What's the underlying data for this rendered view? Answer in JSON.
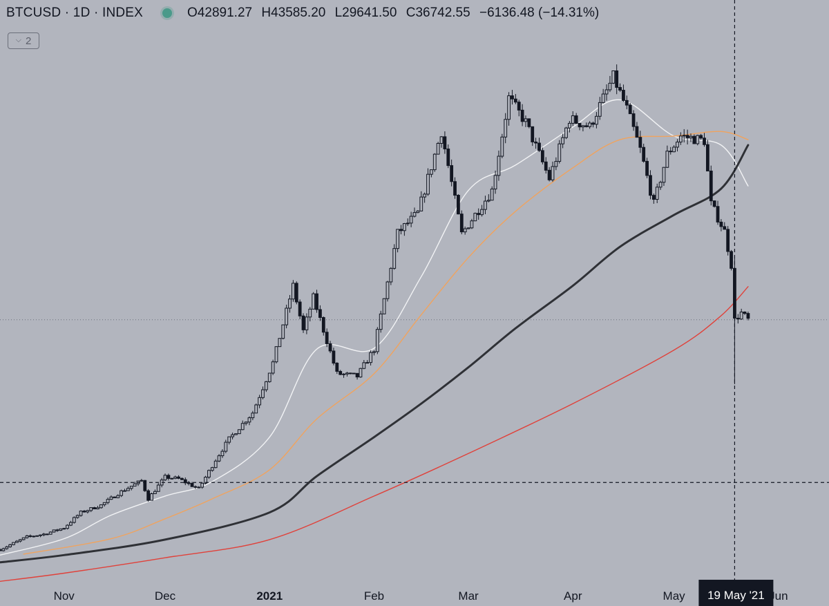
{
  "header": {
    "symbol_title": "BTCUSD · 1D · INDEX",
    "ohlc": {
      "open": "O42891.27",
      "high": "H43585.20",
      "low": "L29641.50",
      "close": "C36742.55",
      "change": "−6136.48 (−14.31%)"
    },
    "indicator_toggle": {
      "icon": "chevron-down-icon",
      "count": "2"
    }
  },
  "crosshair": {
    "date_label": "19 May '21"
  },
  "colors": {
    "background": "#b2b5be",
    "candle": "#131722",
    "ma20": "#f2f3f5",
    "ma50": "#f0a35e",
    "ma200": "#2f3136",
    "ma_red": "#e0413a",
    "crosshair": "#131722",
    "last_price_line": "#6b6f7a"
  },
  "chart_data": {
    "type": "candlestick",
    "symbol": "BTCUSD",
    "interval": "1D",
    "x_range": [
      "2020-10-13",
      "2021-06-16"
    ],
    "xlabel": "",
    "ylabel": "",
    "x_ticks": [
      {
        "date": "2020-11-01",
        "label": "Nov",
        "bold": false
      },
      {
        "date": "2020-12-01",
        "label": "Dec",
        "bold": false
      },
      {
        "date": "2021-01-01",
        "label": "2021",
        "bold": true
      },
      {
        "date": "2021-02-01",
        "label": "Feb",
        "bold": false
      },
      {
        "date": "2021-03-01",
        "label": "Mar",
        "bold": false
      },
      {
        "date": "2021-04-01",
        "label": "Apr",
        "bold": false
      },
      {
        "date": "2021-05-01",
        "label": "May",
        "bold": false
      },
      {
        "date": "2021-06-01",
        "label": "Jun",
        "bold": false
      }
    ],
    "y_range": [
      8000,
      72000
    ],
    "last_close": 36742.55,
    "crosshair_date": "2021-05-19",
    "crosshair_price": 18800,
    "price_path": [
      [
        "2020-10-13",
        11400
      ],
      [
        "2020-10-21",
        12800
      ],
      [
        "2020-10-26",
        13100
      ],
      [
        "2020-11-01",
        13800
      ],
      [
        "2020-11-06",
        15500
      ],
      [
        "2020-11-12",
        16300
      ],
      [
        "2020-11-18",
        17800
      ],
      [
        "2020-11-24",
        19000
      ],
      [
        "2020-11-26",
        17000
      ],
      [
        "2020-12-01",
        19400
      ],
      [
        "2020-12-05",
        19200
      ],
      [
        "2020-12-11",
        18100
      ],
      [
        "2020-12-16",
        21300
      ],
      [
        "2020-12-20",
        23600
      ],
      [
        "2020-12-27",
        26500
      ],
      [
        "2021-01-02",
        32000
      ],
      [
        "2021-01-08",
        40500
      ],
      [
        "2021-01-11",
        35500
      ],
      [
        "2021-01-14",
        39200
      ],
      [
        "2021-01-21",
        30800
      ],
      [
        "2021-01-27",
        30500
      ],
      [
        "2021-02-01",
        33500
      ],
      [
        "2021-02-08",
        46300
      ],
      [
        "2021-02-14",
        48500
      ],
      [
        "2021-02-21",
        57500
      ],
      [
        "2021-02-27",
        46200
      ],
      [
        "2021-03-08",
        51000
      ],
      [
        "2021-03-13",
        61200
      ],
      [
        "2021-03-18",
        58500
      ],
      [
        "2021-03-25",
        52300
      ],
      [
        "2021-03-31",
        58900
      ],
      [
        "2021-04-06",
        58000
      ],
      [
        "2021-04-13",
        63500
      ],
      [
        "2021-04-17",
        60000
      ],
      [
        "2021-04-21",
        55500
      ],
      [
        "2021-04-25",
        49500
      ],
      [
        "2021-04-29",
        55000
      ],
      [
        "2021-05-03",
        57000
      ],
      [
        "2021-05-10",
        56500
      ],
      [
        "2021-05-12",
        49500
      ],
      [
        "2021-05-16",
        46500
      ],
      [
        "2021-05-18",
        42800
      ],
      [
        "2021-05-19",
        36700
      ],
      [
        "2021-05-21",
        37500
      ],
      [
        "2021-05-23",
        36742.55
      ]
    ],
    "series": [
      {
        "color": "#f2f3f5",
        "values": [
          [
            "2020-10-13",
            10800
          ],
          [
            "2020-11-01",
            12600
          ],
          [
            "2020-11-15",
            15200
          ],
          [
            "2020-12-01",
            17300
          ],
          [
            "2020-12-15",
            18900
          ],
          [
            "2021-01-01",
            23800
          ],
          [
            "2021-01-15",
            33500
          ],
          [
            "2021-02-01",
            33600
          ],
          [
            "2021-02-15",
            41500
          ],
          [
            "2021-03-01",
            51000
          ],
          [
            "2021-03-15",
            53800
          ],
          [
            "2021-04-01",
            58000
          ],
          [
            "2021-04-15",
            61000
          ],
          [
            "2021-05-01",
            57000
          ],
          [
            "2021-05-15",
            56000
          ],
          [
            "2021-05-23",
            51500
          ]
        ]
      },
      {
        "color": "#f0a35e",
        "values": [
          [
            "2020-10-20",
            10900
          ],
          [
            "2020-11-15",
            12600
          ],
          [
            "2020-12-01",
            14800
          ],
          [
            "2020-12-15",
            17000
          ],
          [
            "2021-01-01",
            20200
          ],
          [
            "2021-01-15",
            25800
          ],
          [
            "2021-02-01",
            30800
          ],
          [
            "2021-02-15",
            37300
          ],
          [
            "2021-03-01",
            43600
          ],
          [
            "2021-03-15",
            48700
          ],
          [
            "2021-04-01",
            53500
          ],
          [
            "2021-04-15",
            56600
          ],
          [
            "2021-05-01",
            57000
          ],
          [
            "2021-05-15",
            57500
          ],
          [
            "2021-05-23",
            56600
          ]
        ]
      },
      {
        "color": "#2f3136",
        "values": [
          [
            "2020-10-13",
            10000
          ],
          [
            "2020-11-01",
            10800
          ],
          [
            "2020-12-01",
            12500
          ],
          [
            "2021-01-01",
            15500
          ],
          [
            "2021-01-15",
            19500
          ],
          [
            "2021-02-01",
            23800
          ],
          [
            "2021-02-15",
            27500
          ],
          [
            "2021-03-01",
            31500
          ],
          [
            "2021-03-15",
            35800
          ],
          [
            "2021-04-01",
            40500
          ],
          [
            "2021-04-15",
            44800
          ],
          [
            "2021-05-01",
            48300
          ],
          [
            "2021-05-15",
            51200
          ],
          [
            "2021-05-23",
            56000
          ]
        ]
      },
      {
        "color": "#e0413a",
        "values": [
          [
            "2020-10-13",
            7900
          ],
          [
            "2020-11-01",
            8800
          ],
          [
            "2020-12-01",
            10500
          ],
          [
            "2021-01-01",
            12500
          ],
          [
            "2021-02-01",
            17300
          ],
          [
            "2021-03-01",
            22000
          ],
          [
            "2021-04-01",
            27500
          ],
          [
            "2021-05-01",
            33400
          ],
          [
            "2021-05-15",
            37200
          ],
          [
            "2021-05-23",
            40400
          ]
        ]
      }
    ]
  }
}
